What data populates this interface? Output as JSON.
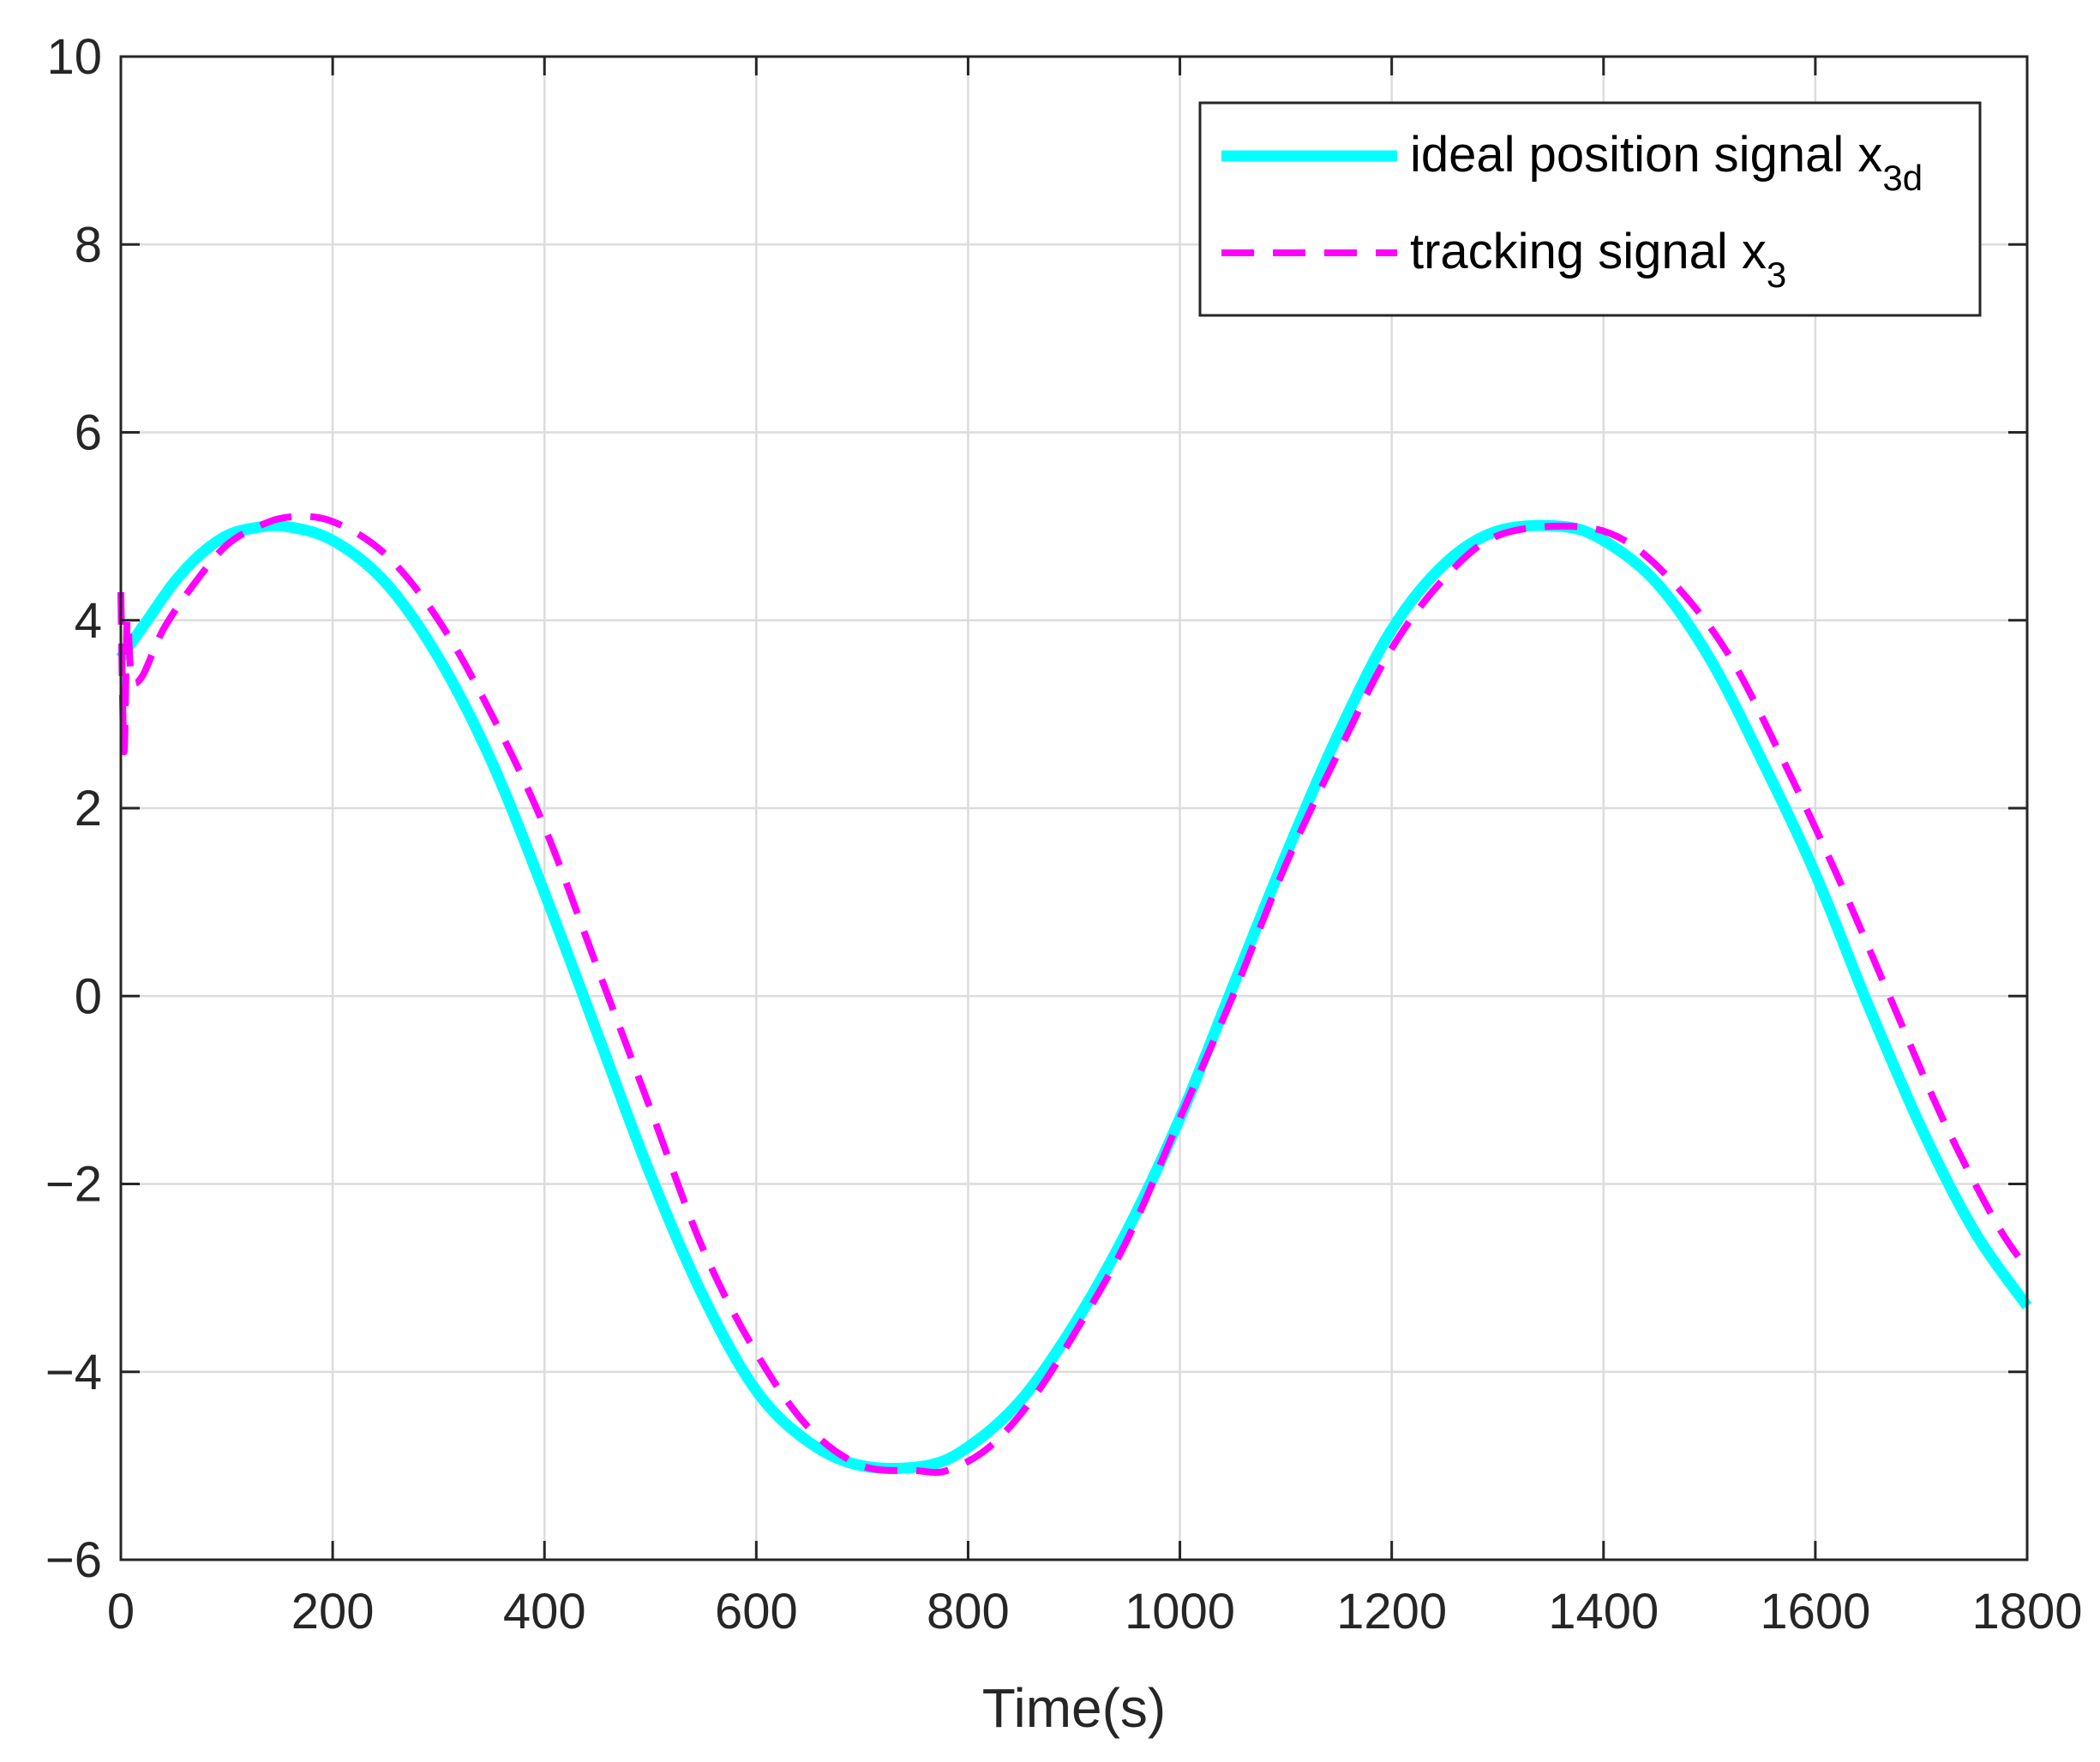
{
  "chart_data": {
    "type": "line",
    "title": "",
    "xlabel": "Time(s)",
    "ylabel": "",
    "xlim": [
      0,
      1800
    ],
    "ylim": [
      -6,
      10
    ],
    "xticks": [
      0,
      200,
      400,
      600,
      800,
      1000,
      1200,
      1400,
      1600,
      1800
    ],
    "yticks": [
      -6,
      -4,
      -2,
      0,
      2,
      4,
      6,
      8,
      10
    ],
    "xtick_labels": [
      "0",
      "200",
      "400",
      "600",
      "800",
      "1000",
      "1200",
      "1400",
      "1600",
      "1800"
    ],
    "ytick_labels": [
      "−6",
      "−4",
      "−2",
      "0",
      "2",
      "4",
      "6",
      "8",
      "10"
    ],
    "grid": true,
    "legend_position": "top-right",
    "series": [
      {
        "name": "ideal position signal x3d",
        "legend_main": "ideal position signal x",
        "legend_sub": "3d",
        "color": "#00FFFF",
        "style": "solid",
        "x": [
          0,
          25,
          50,
          75,
          100,
          125,
          155,
          200,
          250,
          300,
          350,
          400,
          450,
          500,
          550,
          600,
          650,
          700,
          760,
          800,
          850,
          900,
          950,
          1000,
          1050,
          1100,
          1150,
          1200,
          1250,
          1300,
          1360,
          1400,
          1450,
          1500,
          1550,
          1600,
          1650,
          1700,
          1750,
          1800
        ],
        "y": [
          3.6,
          4.0,
          4.4,
          4.7,
          4.9,
          4.98,
          5.0,
          4.85,
          4.4,
          3.6,
          2.5,
          1.1,
          -0.4,
          -1.9,
          -3.2,
          -4.2,
          -4.75,
          -5.0,
          -5.0,
          -4.8,
          -4.3,
          -3.5,
          -2.5,
          -1.3,
          0.1,
          1.5,
          2.8,
          3.9,
          4.6,
          4.95,
          5.0,
          4.85,
          4.4,
          3.6,
          2.5,
          1.3,
          -0.1,
          -1.4,
          -2.5,
          -3.3
        ]
      },
      {
        "name": "tracking signal x3",
        "legend_main": "tracking signal x",
        "legend_sub": "3",
        "color": "#FF00FF",
        "style": "dashed",
        "x": [
          0,
          3,
          6,
          10,
          20,
          40,
          70,
          100,
          130,
          160,
          200,
          250,
          300,
          350,
          400,
          450,
          500,
          550,
          600,
          650,
          700,
          750,
          780,
          820,
          860,
          900,
          950,
          1000,
          1050,
          1100,
          1150,
          1200,
          1250,
          1300,
          1370,
          1420,
          1470,
          1520,
          1570,
          1620,
          1670,
          1720,
          1770,
          1800
        ],
        "y": [
          4.3,
          2.6,
          4.0,
          3.4,
          3.4,
          3.9,
          4.4,
          4.8,
          5.0,
          5.1,
          5.05,
          4.7,
          4.0,
          3.0,
          1.8,
          0.3,
          -1.2,
          -2.7,
          -3.8,
          -4.6,
          -5.0,
          -5.05,
          -5.05,
          -4.8,
          -4.3,
          -3.6,
          -2.6,
          -1.3,
          0.0,
          1.4,
          2.6,
          3.7,
          4.45,
          4.9,
          5.0,
          4.85,
          4.35,
          3.6,
          2.5,
          1.3,
          0.0,
          -1.3,
          -2.4,
          -2.9
        ]
      }
    ]
  }
}
